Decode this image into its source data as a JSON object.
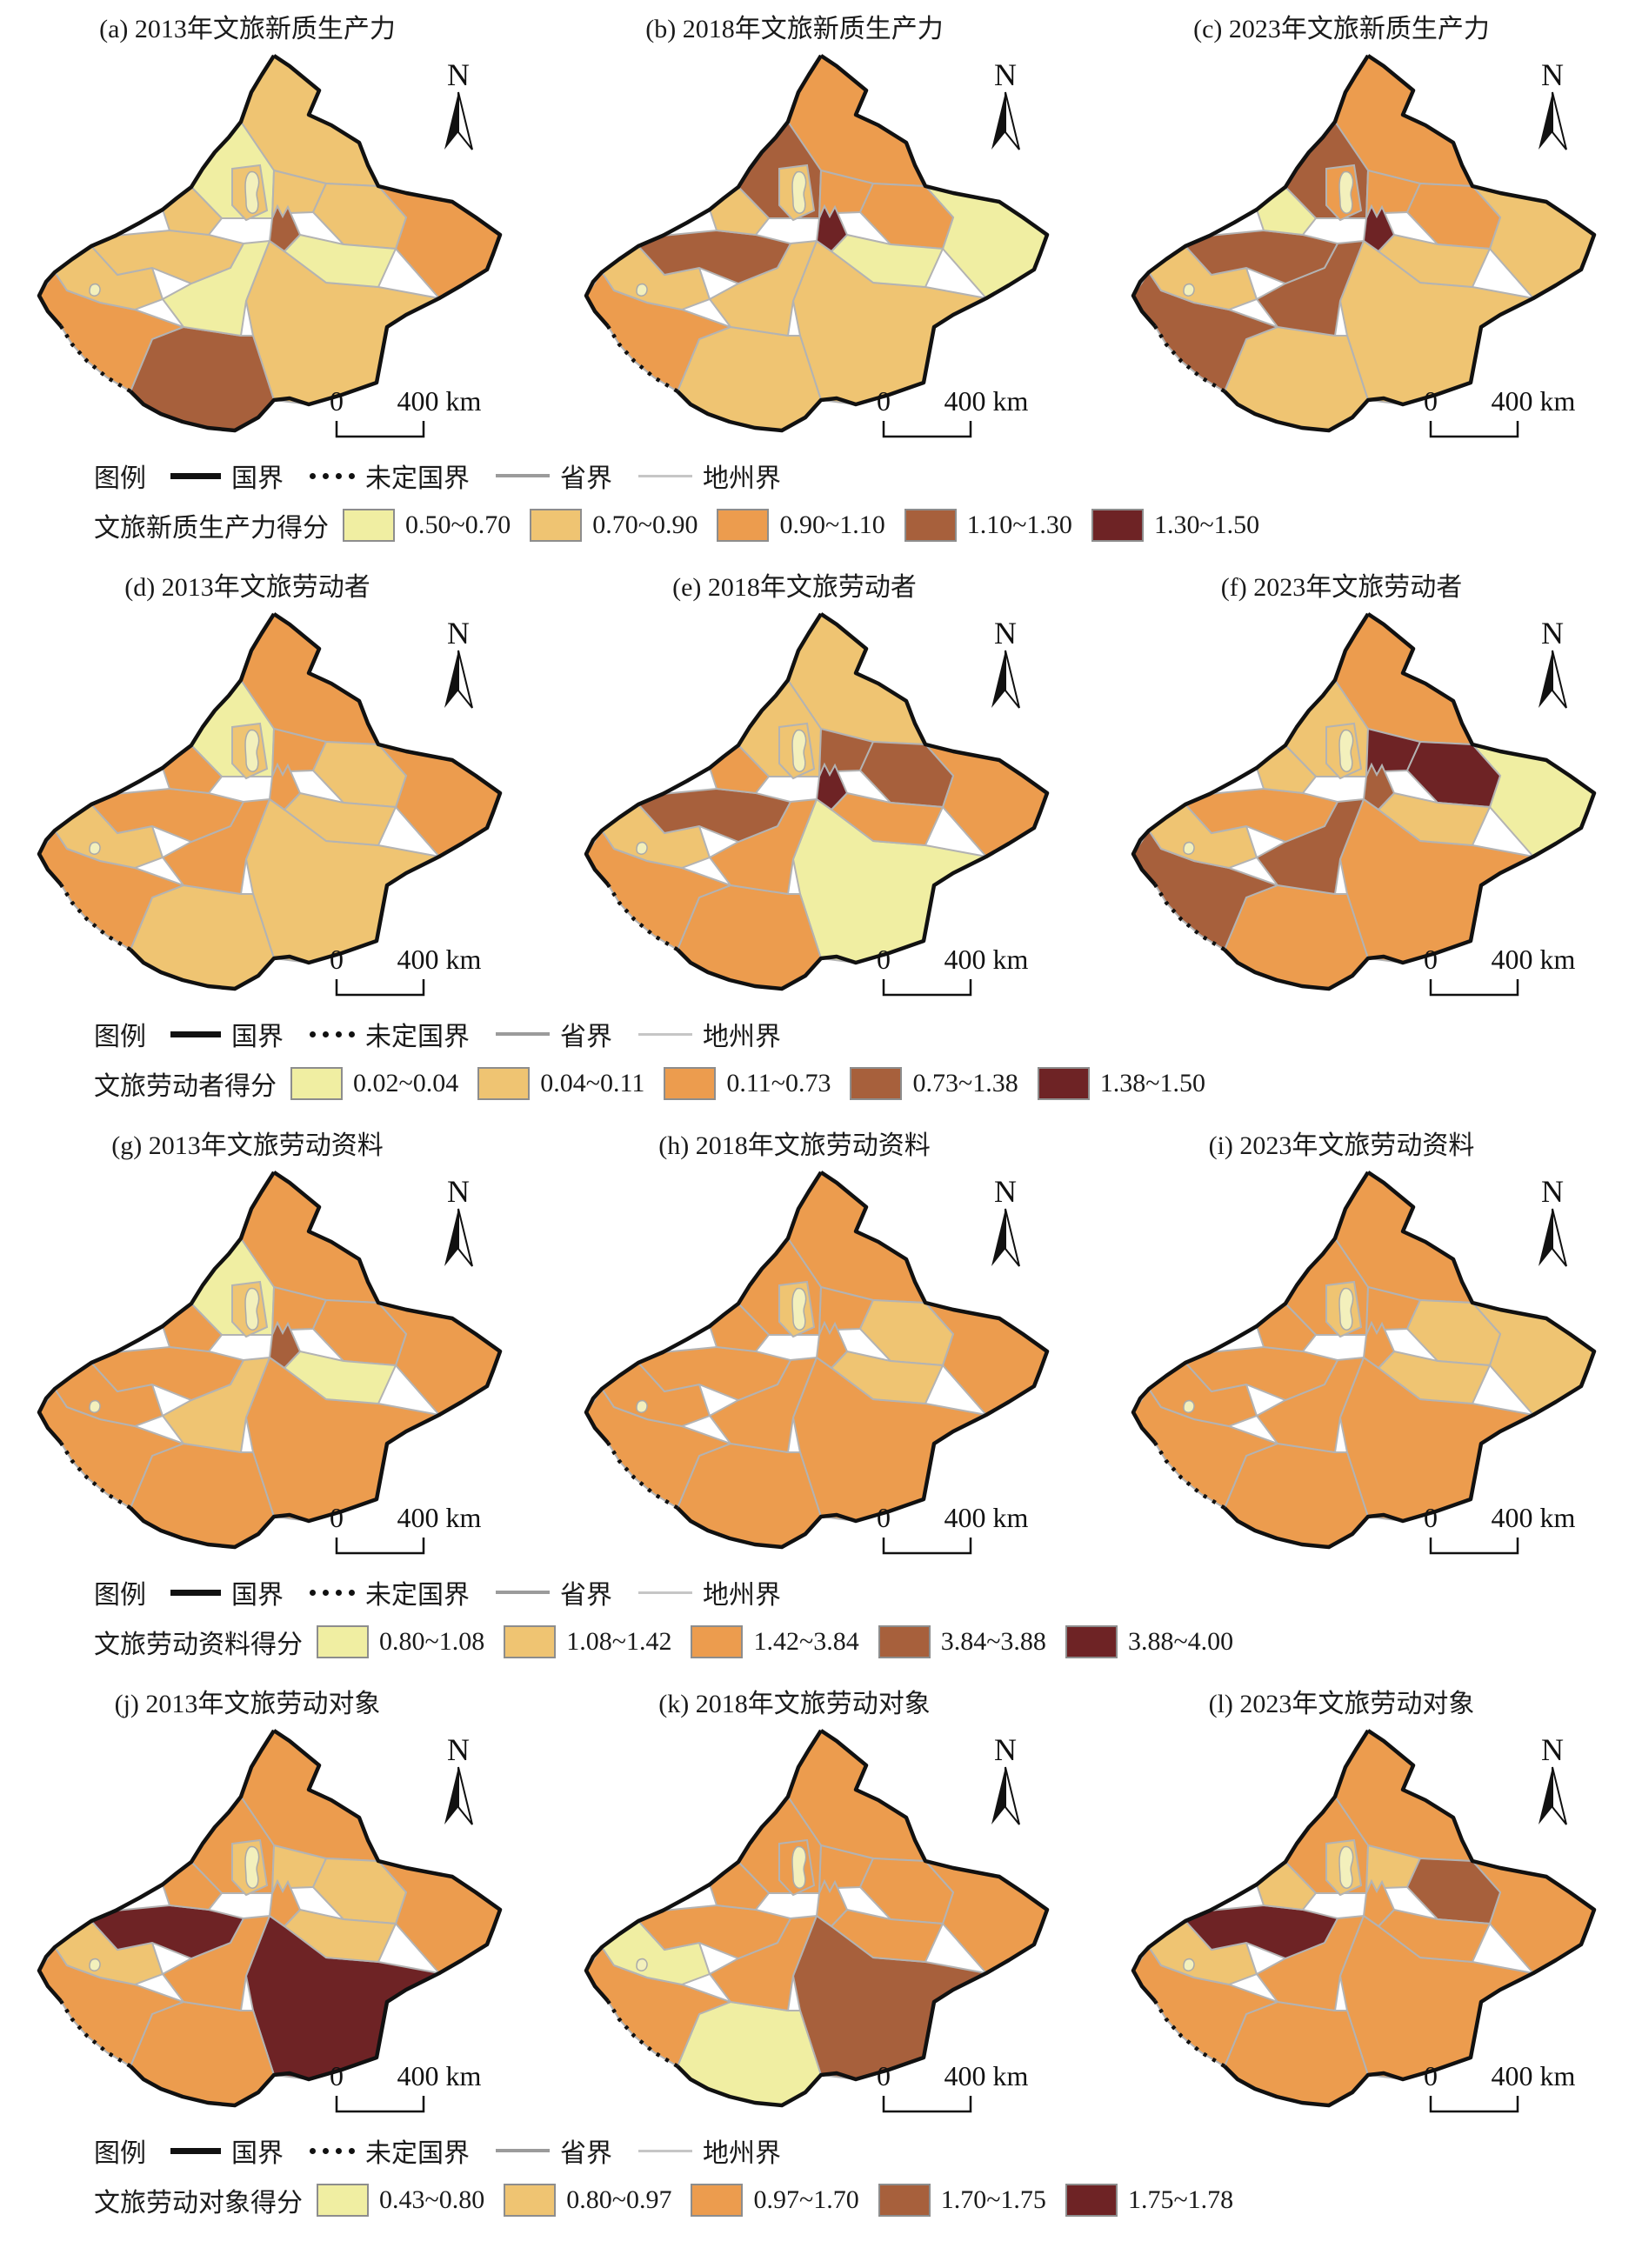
{
  "figure": {
    "north_label": "N",
    "scale_zero": "0",
    "scale_distance": "400 km",
    "boundary_legend_title": "图例",
    "boundary_items": [
      {
        "label": "国界",
        "style": "national"
      },
      {
        "label": "未定国界",
        "style": "undefined"
      },
      {
        "label": "省界",
        "style": "province"
      },
      {
        "label": "地州界",
        "style": "prefecture"
      }
    ],
    "class_colors": [
      "#F0EEA2",
      "#EFC472",
      "#EC9C4E",
      "#A7603C",
      "#6E2325"
    ],
    "lake_color": "#F3F0BC",
    "border_colors": {
      "national": "#111111",
      "prefecture": "#b3b3b3"
    },
    "region_names": [
      "hami",
      "bayingol",
      "hotan",
      "kashgar",
      "aksu",
      "kizilsu",
      "ili",
      "altay",
      "tacheng",
      "karamay",
      "bortala",
      "changji-west",
      "changji-east",
      "turpan",
      "urumqi"
    ],
    "rows": [
      {
        "score_label": "文旅新质生产力得分",
        "ranges": [
          "0.50~0.70",
          "0.70~0.90",
          "0.90~1.10",
          "1.10~1.30",
          "1.30~1.50"
        ],
        "panels": [
          {
            "title": "(a) 2013年文旅新质生产力",
            "classes": [
              3,
              2,
              4,
              3,
              1,
              2,
              2,
              2,
              1,
              2,
              2,
              2,
              2,
              1,
              4
            ]
          },
          {
            "title": "(b) 2018年文旅新质生产力",
            "classes": [
              1,
              2,
              2,
              3,
              2,
              2,
              4,
              3,
              4,
              2,
              2,
              3,
              3,
              1,
              5
            ]
          },
          {
            "title": "(c) 2023年文旅新质生产力",
            "classes": [
              2,
              2,
              2,
              4,
              4,
              2,
              4,
              3,
              4,
              3,
              1,
              3,
              3,
              2,
              5
            ]
          }
        ]
      },
      {
        "score_label": "文旅劳动者得分",
        "ranges": [
          "0.02~0.04",
          "0.04~0.11",
          "0.11~0.73",
          "0.73~1.38",
          "1.38~1.50"
        ],
        "panels": [
          {
            "title": "(d) 2013年文旅劳动者",
            "classes": [
              3,
              2,
              2,
              3,
              3,
              2,
              3,
              3,
              1,
              2,
              3,
              3,
              2,
              2,
              3
            ]
          },
          {
            "title": "(e) 2018年文旅劳动者",
            "classes": [
              3,
              1,
              3,
              3,
              3,
              2,
              4,
              2,
              2,
              2,
              3,
              4,
              4,
              3,
              5
            ]
          },
          {
            "title": "(f) 2023年文旅劳动者",
            "classes": [
              1,
              3,
              3,
              4,
              4,
              2,
              3,
              3,
              2,
              2,
              2,
              5,
              5,
              2,
              4
            ]
          }
        ]
      },
      {
        "score_label": "文旅劳动资料得分",
        "ranges": [
          "0.80~1.08",
          "1.08~1.42",
          "1.42~3.84",
          "3.84~3.88",
          "3.88~4.00"
        ],
        "panels": [
          {
            "title": "(g) 2013年文旅劳动资料",
            "classes": [
              3,
              3,
              3,
              3,
              2,
              3,
              3,
              3,
              1,
              2,
              3,
              3,
              3,
              1,
              4
            ]
          },
          {
            "title": "(h) 2018年文旅劳动资料",
            "classes": [
              3,
              3,
              3,
              3,
              3,
              3,
              3,
              3,
              3,
              2,
              3,
              3,
              2,
              2,
              3
            ]
          },
          {
            "title": "(i) 2023年文旅劳动资料",
            "classes": [
              2,
              3,
              3,
              3,
              3,
              3,
              3,
              3,
              3,
              2,
              3,
              3,
              2,
              2,
              3
            ]
          }
        ]
      },
      {
        "score_label": "文旅劳动对象得分",
        "ranges": [
          "0.43~0.80",
          "0.80~0.97",
          "0.97~1.70",
          "1.70~1.75",
          "1.75~1.78"
        ],
        "panels": [
          {
            "title": "(j) 2013年文旅劳动对象",
            "classes": [
              3,
              5,
              3,
              3,
              3,
              2,
              5,
              3,
              3,
              2,
              3,
              2,
              2,
              2,
              3
            ]
          },
          {
            "title": "(k) 2018年文旅劳动对象",
            "classes": [
              3,
              4,
              1,
              3,
              3,
              1,
              3,
              3,
              3,
              3,
              3,
              3,
              3,
              3,
              3
            ]
          },
          {
            "title": "(l) 2023年文旅劳动对象",
            "classes": [
              3,
              3,
              3,
              3,
              3,
              2,
              5,
              3,
              3,
              2,
              2,
              2,
              4,
              3,
              3
            ]
          }
        ]
      }
    ]
  }
}
